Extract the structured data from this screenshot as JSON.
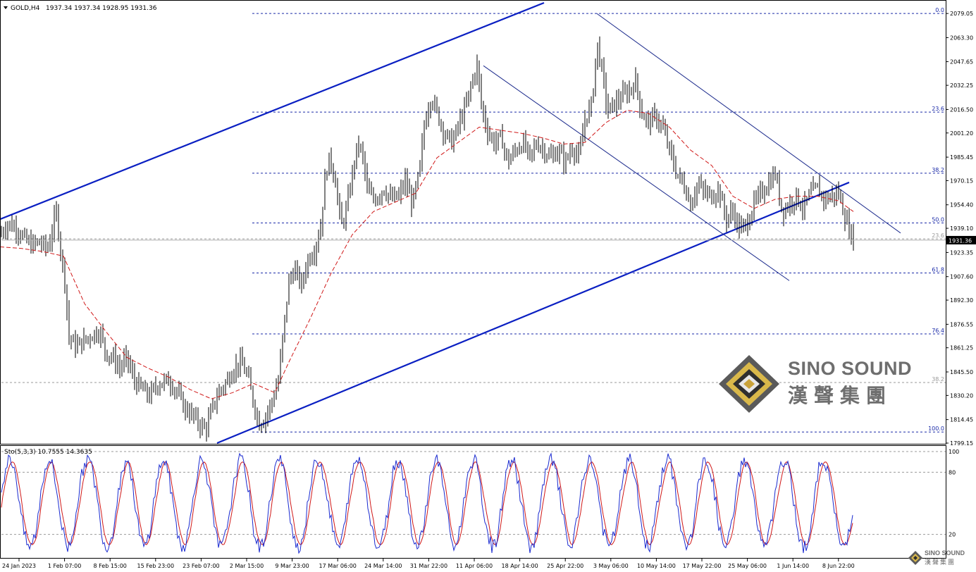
{
  "header": {
    "symbol": "GOLD,H4",
    "ohlc": "1937.34 1937.34 1928.95 1931.36"
  },
  "stoch": {
    "label": "Sto(5,3,3) 10.7555 14.3635",
    "levels": [
      "100",
      "80",
      "20"
    ]
  },
  "price_axis": {
    "labels": [
      "2079.05",
      "2063.30",
      "2047.65",
      "2032.25",
      "2016.50",
      "2001.20",
      "1985.45",
      "1970.15",
      "1954.40",
      "1939.10",
      "1923.35",
      "1907.60",
      "1892.30",
      "1876.55",
      "1861.25",
      "1845.50",
      "1830.20",
      "1814.45",
      "1799.15"
    ],
    "current_price": "1931.36"
  },
  "time_axis": {
    "labels": [
      "24 Jan 2023",
      "1 Feb 07:00",
      "8 Feb 15:00",
      "15 Feb 23:00",
      "23 Feb 07:00",
      "2 Mar 15:00",
      "9 Mar 23:00",
      "17 Mar 06:00",
      "24 Mar 14:00",
      "31 Mar 22:00",
      "11 Apr 06:00",
      "18 Apr 14:00",
      "25 Apr 22:00",
      "3 May 06:00",
      "10 May 14:00",
      "17 May 22:00",
      "25 May 06:00",
      "1 Jun 14:00",
      "8 Jun 22:00"
    ]
  },
  "fib_main": {
    "levels": [
      {
        "label": "0.0",
        "price": 2079.05
      },
      {
        "label": "23.6",
        "price": 2014.8
      },
      {
        "label": "38.2",
        "price": 1975.0
      },
      {
        "label": "50.0",
        "price": 1942.6
      },
      {
        "label": "61.8",
        "price": 1910.0
      },
      {
        "label": "76.4",
        "price": 1870.3
      },
      {
        "label": "100.0",
        "price": 1806.4
      }
    ]
  },
  "fib_secondary": {
    "levels": [
      {
        "label": "23.6",
        "price": 1932.2
      },
      {
        "label": "38.2",
        "price": 1838.6
      }
    ]
  },
  "watermark": {
    "name_en": "SINO SOUND",
    "name_zh": "漢聲集團"
  },
  "colors": {
    "trendline": "#0a1fc2",
    "channel_thin": "#1b2a8c",
    "fib_main": "#1a2aa8",
    "fib_secondary": "#9a9a9a",
    "ma": "#d01818",
    "stoch_main": "#1a2ad0",
    "stoch_signal": "#d01818",
    "candle": "#000000"
  },
  "chart_data": {
    "type": "candlestick",
    "title": "GOLD,H4",
    "y_range": [
      1799.15,
      2086
    ],
    "stoch_range": [
      0,
      100
    ],
    "x_labels": [
      "24 Jan 2023",
      "1 Feb 07:00",
      "8 Feb 15:00",
      "15 Feb 23:00",
      "23 Feb 07:00",
      "2 Mar 15:00",
      "9 Mar 23:00",
      "17 Mar 06:00",
      "24 Mar 14:00",
      "31 Mar 22:00",
      "11 Apr 06:00",
      "18 Apr 14:00",
      "25 Apr 22:00",
      "3 May 06:00",
      "10 May 14:00",
      "17 May 22:00",
      "25 May 06:00",
      "1 Jun 14:00",
      "8 Jun 22:00"
    ],
    "close_path": [
      [
        0,
        1935
      ],
      [
        10,
        1942
      ],
      [
        22,
        1940
      ],
      [
        35,
        1932
      ],
      [
        45,
        1928
      ],
      [
        55,
        1930
      ],
      [
        68,
        1926
      ],
      [
        75,
        1940
      ],
      [
        80,
        1950
      ],
      [
        86,
        1925
      ],
      [
        92,
        1905
      ],
      [
        98,
        1868
      ],
      [
        108,
        1862
      ],
      [
        120,
        1866
      ],
      [
        132,
        1870
      ],
      [
        142,
        1872
      ],
      [
        150,
        1858
      ],
      [
        160,
        1855
      ],
      [
        170,
        1848
      ],
      [
        180,
        1855
      ],
      [
        190,
        1840
      ],
      [
        200,
        1835
      ],
      [
        212,
        1830
      ],
      [
        225,
        1838
      ],
      [
        240,
        1840
      ],
      [
        252,
        1832
      ],
      [
        262,
        1822
      ],
      [
        272,
        1818
      ],
      [
        282,
        1812
      ],
      [
        292,
        1808
      ],
      [
        300,
        1820
      ],
      [
        310,
        1832
      ],
      [
        320,
        1838
      ],
      [
        332,
        1848
      ],
      [
        342,
        1852
      ],
      [
        352,
        1842
      ],
      [
        360,
        1825
      ],
      [
        368,
        1812
      ],
      [
        375,
        1815
      ],
      [
        385,
        1825
      ],
      [
        395,
        1840
      ],
      [
        403,
        1875
      ],
      [
        410,
        1905
      ],
      [
        418,
        1912
      ],
      [
        428,
        1902
      ],
      [
        436,
        1918
      ],
      [
        446,
        1925
      ],
      [
        455,
        1940
      ],
      [
        462,
        1975
      ],
      [
        468,
        1985
      ],
      [
        476,
        1970
      ],
      [
        484,
        1940
      ],
      [
        492,
        1952
      ],
      [
        500,
        1975
      ],
      [
        508,
        1995
      ],
      [
        515,
        1985
      ],
      [
        522,
        1962
      ],
      [
        532,
        1958
      ],
      [
        545,
        1965
      ],
      [
        555,
        1958
      ],
      [
        566,
        1960
      ],
      [
        575,
        1970
      ],
      [
        585,
        1955
      ],
      [
        595,
        1975
      ],
      [
        603,
        2010
      ],
      [
        612,
        2025
      ],
      [
        622,
        2012
      ],
      [
        632,
        2000
      ],
      [
        642,
        1995
      ],
      [
        652,
        2008
      ],
      [
        662,
        2020
      ],
      [
        670,
        2035
      ],
      [
        677,
        2045
      ],
      [
        683,
        2020
      ],
      [
        690,
        2005
      ],
      [
        700,
        1995
      ],
      [
        712,
        1998
      ],
      [
        720,
        1982
      ],
      [
        732,
        1990
      ],
      [
        742,
        1995
      ],
      [
        752,
        1985
      ],
      [
        762,
        1995
      ],
      [
        772,
        1990
      ],
      [
        782,
        1985
      ],
      [
        792,
        1990
      ],
      [
        802,
        1982
      ],
      [
        812,
        1992
      ],
      [
        822,
        1985
      ],
      [
        830,
        2010
      ],
      [
        840,
        2020
      ],
      [
        847,
        2060
      ],
      [
        855,
        2040
      ],
      [
        862,
        2015
      ],
      [
        872,
        2020
      ],
      [
        882,
        2025
      ],
      [
        892,
        2028
      ],
      [
        902,
        2035
      ],
      [
        910,
        2015
      ],
      [
        920,
        2008
      ],
      [
        930,
        2012
      ],
      [
        940,
        2005
      ],
      [
        950,
        1990
      ],
      [
        960,
        1975
      ],
      [
        970,
        1968
      ],
      [
        980,
        1955
      ],
      [
        990,
        1968
      ],
      [
        1000,
        1962
      ],
      [
        1010,
        1960
      ],
      [
        1020,
        1965
      ],
      [
        1030,
        1945
      ],
      [
        1040,
        1950
      ],
      [
        1050,
        1938
      ],
      [
        1060,
        1942
      ],
      [
        1070,
        1955
      ],
      [
        1080,
        1962
      ],
      [
        1090,
        1968
      ],
      [
        1100,
        1975
      ],
      [
        1110,
        1950
      ],
      [
        1120,
        1955
      ],
      [
        1130,
        1960
      ],
      [
        1140,
        1952
      ],
      [
        1150,
        1962
      ],
      [
        1160,
        1965
      ],
      [
        1170,
        1958
      ],
      [
        1180,
        1960
      ],
      [
        1190,
        1962
      ],
      [
        1200,
        1945
      ],
      [
        1211,
        1931.36
      ]
    ],
    "ma_path": [
      [
        0,
        1927
      ],
      [
        30,
        1926
      ],
      [
        60,
        1924
      ],
      [
        90,
        1921
      ],
      [
        120,
        1890
      ],
      [
        150,
        1872
      ],
      [
        180,
        1855
      ],
      [
        210,
        1848
      ],
      [
        240,
        1842
      ],
      [
        270,
        1834
      ],
      [
        300,
        1828
      ],
      [
        330,
        1832
      ],
      [
        360,
        1838
      ],
      [
        390,
        1832
      ],
      [
        410,
        1852
      ],
      [
        440,
        1880
      ],
      [
        470,
        1910
      ],
      [
        500,
        1935
      ],
      [
        530,
        1950
      ],
      [
        560,
        1956
      ],
      [
        590,
        1962
      ],
      [
        620,
        1985
      ],
      [
        650,
        1995
      ],
      [
        680,
        2005
      ],
      [
        710,
        2003
      ],
      [
        740,
        2001
      ],
      [
        770,
        1998
      ],
      [
        800,
        1994
      ],
      [
        830,
        1995
      ],
      [
        860,
        2008
      ],
      [
        890,
        2016
      ],
      [
        920,
        2014
      ],
      [
        950,
        2005
      ],
      [
        980,
        1990
      ],
      [
        1010,
        1980
      ],
      [
        1040,
        1960
      ],
      [
        1070,
        1952
      ],
      [
        1100,
        1958
      ],
      [
        1130,
        1960
      ],
      [
        1160,
        1960
      ],
      [
        1190,
        1957
      ],
      [
        1211,
        1950
      ]
    ],
    "channel_upper": [
      [
        0,
        1945
      ],
      [
        772,
        2086
      ]
    ],
    "channel_lower": [
      [
        308,
        1799.15
      ],
      [
        1205,
        1969
      ]
    ],
    "channel_thin_1": [
      [
        686,
        2045
      ],
      [
        1120,
        1905
      ]
    ],
    "channel_thin_2": [
      [
        847,
        2079
      ],
      [
        1278,
        1936
      ]
    ]
  }
}
